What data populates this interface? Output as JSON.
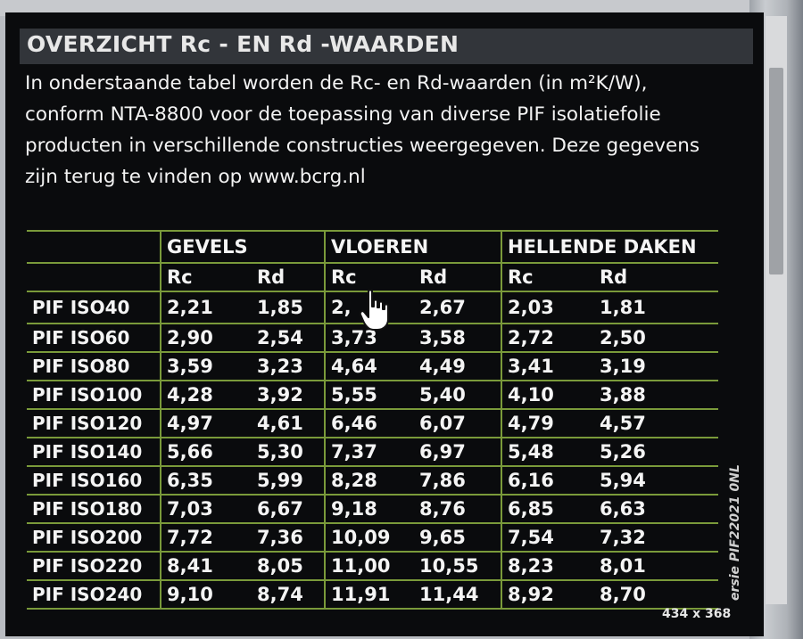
{
  "title": "OVERZICHT Rc - EN Rd -WAARDEN",
  "intro": [
    "In onderstaande tabel worden de Rc- en Rd-waarden (in m²K/W),",
    "conform NTA-8800 voor de toepassing van diverse PIF isolatiefolie",
    "producten in verschillende constructies weergegeven. Deze gegevens",
    "zijn terug te vinden op www.bcrg.nl"
  ],
  "table": {
    "groups": [
      "GEVELS",
      "VLOEREN",
      "HELLENDE DAKEN"
    ],
    "subheaders": [
      "Rc",
      "Rd",
      "Rc",
      "Rd",
      "Rc",
      "Rd"
    ],
    "rows": [
      {
        "product": "PIF ISO40",
        "values": [
          "2,21",
          "1,85",
          "2,",
          "2,67",
          "2,03",
          "1,81"
        ]
      },
      {
        "product": "PIF ISO60",
        "values": [
          "2,90",
          "2,54",
          "3,73",
          "3,58",
          "2,72",
          "2,50"
        ]
      },
      {
        "product": "PIF ISO80",
        "values": [
          "3,59",
          "3,23",
          "4,64",
          "4,49",
          "3,41",
          "3,19"
        ]
      },
      {
        "product": "PIF ISO100",
        "values": [
          "4,28",
          "3,92",
          "5,55",
          "5,40",
          "4,10",
          "3,88"
        ]
      },
      {
        "product": "PIF ISO120",
        "values": [
          "4,97",
          "4,61",
          "6,46",
          "6,07",
          "4,79",
          "4,57"
        ]
      },
      {
        "product": "PIF ISO140",
        "values": [
          "5,66",
          "5,30",
          "7,37",
          "6,97",
          "5,48",
          "5,26"
        ]
      },
      {
        "product": "PIF ISO160",
        "values": [
          "6,35",
          "5,99",
          "8,28",
          "7,86",
          "6,16",
          "5,94"
        ]
      },
      {
        "product": "PIF ISO180",
        "values": [
          "7,03",
          "6,67",
          "9,18",
          "8,76",
          "6,85",
          "6,63"
        ]
      },
      {
        "product": "PIF ISO200",
        "values": [
          "7,72",
          "7,36",
          "10,09",
          "9,65",
          "7,54",
          "7,32"
        ]
      },
      {
        "product": "PIF ISO220",
        "values": [
          "8,41",
          "8,05",
          "11,00",
          "10,55",
          "8,23",
          "8,01"
        ]
      },
      {
        "product": "PIF ISO240",
        "values": [
          "9,10",
          "8,74",
          "11,91",
          "11,44",
          "8,92",
          "8,70"
        ]
      }
    ]
  },
  "side_label": "ersie PIF22021 0NL",
  "image_dimensions": "434 x 368",
  "icons": {
    "cursor": "hand-pointer-icon"
  },
  "colors": {
    "panel": "#0a0b0d",
    "grid": "#7a9a3a",
    "header_bar": "#32353a"
  }
}
